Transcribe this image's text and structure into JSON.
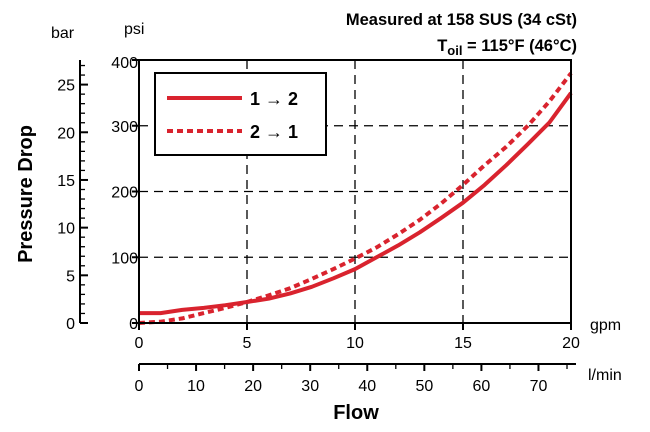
{
  "chart_data": {
    "type": "line",
    "title_line1": "Measured at 158 SUS  (34 cSt)",
    "title_line2_main": "T",
    "title_line2_sub": "oil",
    "title_line2_rest": " = 115°F  (46°C)",
    "ylabel": "Pressure Drop",
    "xlabel": "Flow",
    "y_left_unit": "bar",
    "y_right_unit": "psi",
    "x_top_unit": "gpm",
    "x_bottom_unit": "l/min",
    "xlim_gpm": [
      0,
      20
    ],
    "ylim_psi": [
      0,
      400
    ],
    "ylim_bar": [
      0,
      27.58
    ],
    "xlim_lmin": [
      0,
      75.7
    ],
    "psi_ticks": [
      "0",
      "100",
      "200",
      "300",
      "400"
    ],
    "bar_ticks": [
      "0",
      "5",
      "10",
      "15",
      "20",
      "25"
    ],
    "gpm_ticks": [
      "0",
      "5",
      "10",
      "15",
      "20"
    ],
    "lmin_ticks": [
      "0",
      "10",
      "20",
      "30",
      "40",
      "50",
      "60",
      "70"
    ],
    "grid": "dashed",
    "legend_position": "top-left",
    "series": [
      {
        "name": "1 → 2",
        "style": "solid",
        "color": "#d9232e",
        "x": [
          0,
          1,
          2,
          3,
          4,
          5,
          6,
          7,
          8,
          9,
          10,
          11,
          12,
          13,
          14,
          15,
          16,
          17,
          18,
          19,
          20
        ],
        "y": [
          15,
          15,
          20,
          23,
          27,
          32,
          37,
          45,
          55,
          68,
          82,
          100,
          118,
          138,
          160,
          183,
          210,
          240,
          272,
          305,
          350
        ]
      },
      {
        "name": "2 → 1",
        "style": "dotted",
        "color": "#d9232e",
        "x": [
          0,
          1,
          2,
          3,
          4,
          5,
          6,
          7,
          8,
          9,
          10,
          11,
          12,
          13,
          14,
          15,
          16,
          17,
          18,
          19,
          20
        ],
        "y": [
          0,
          2,
          7,
          15,
          23,
          32,
          42,
          53,
          67,
          82,
          98,
          115,
          135,
          157,
          182,
          210,
          240,
          268,
          300,
          337,
          380
        ]
      }
    ]
  }
}
